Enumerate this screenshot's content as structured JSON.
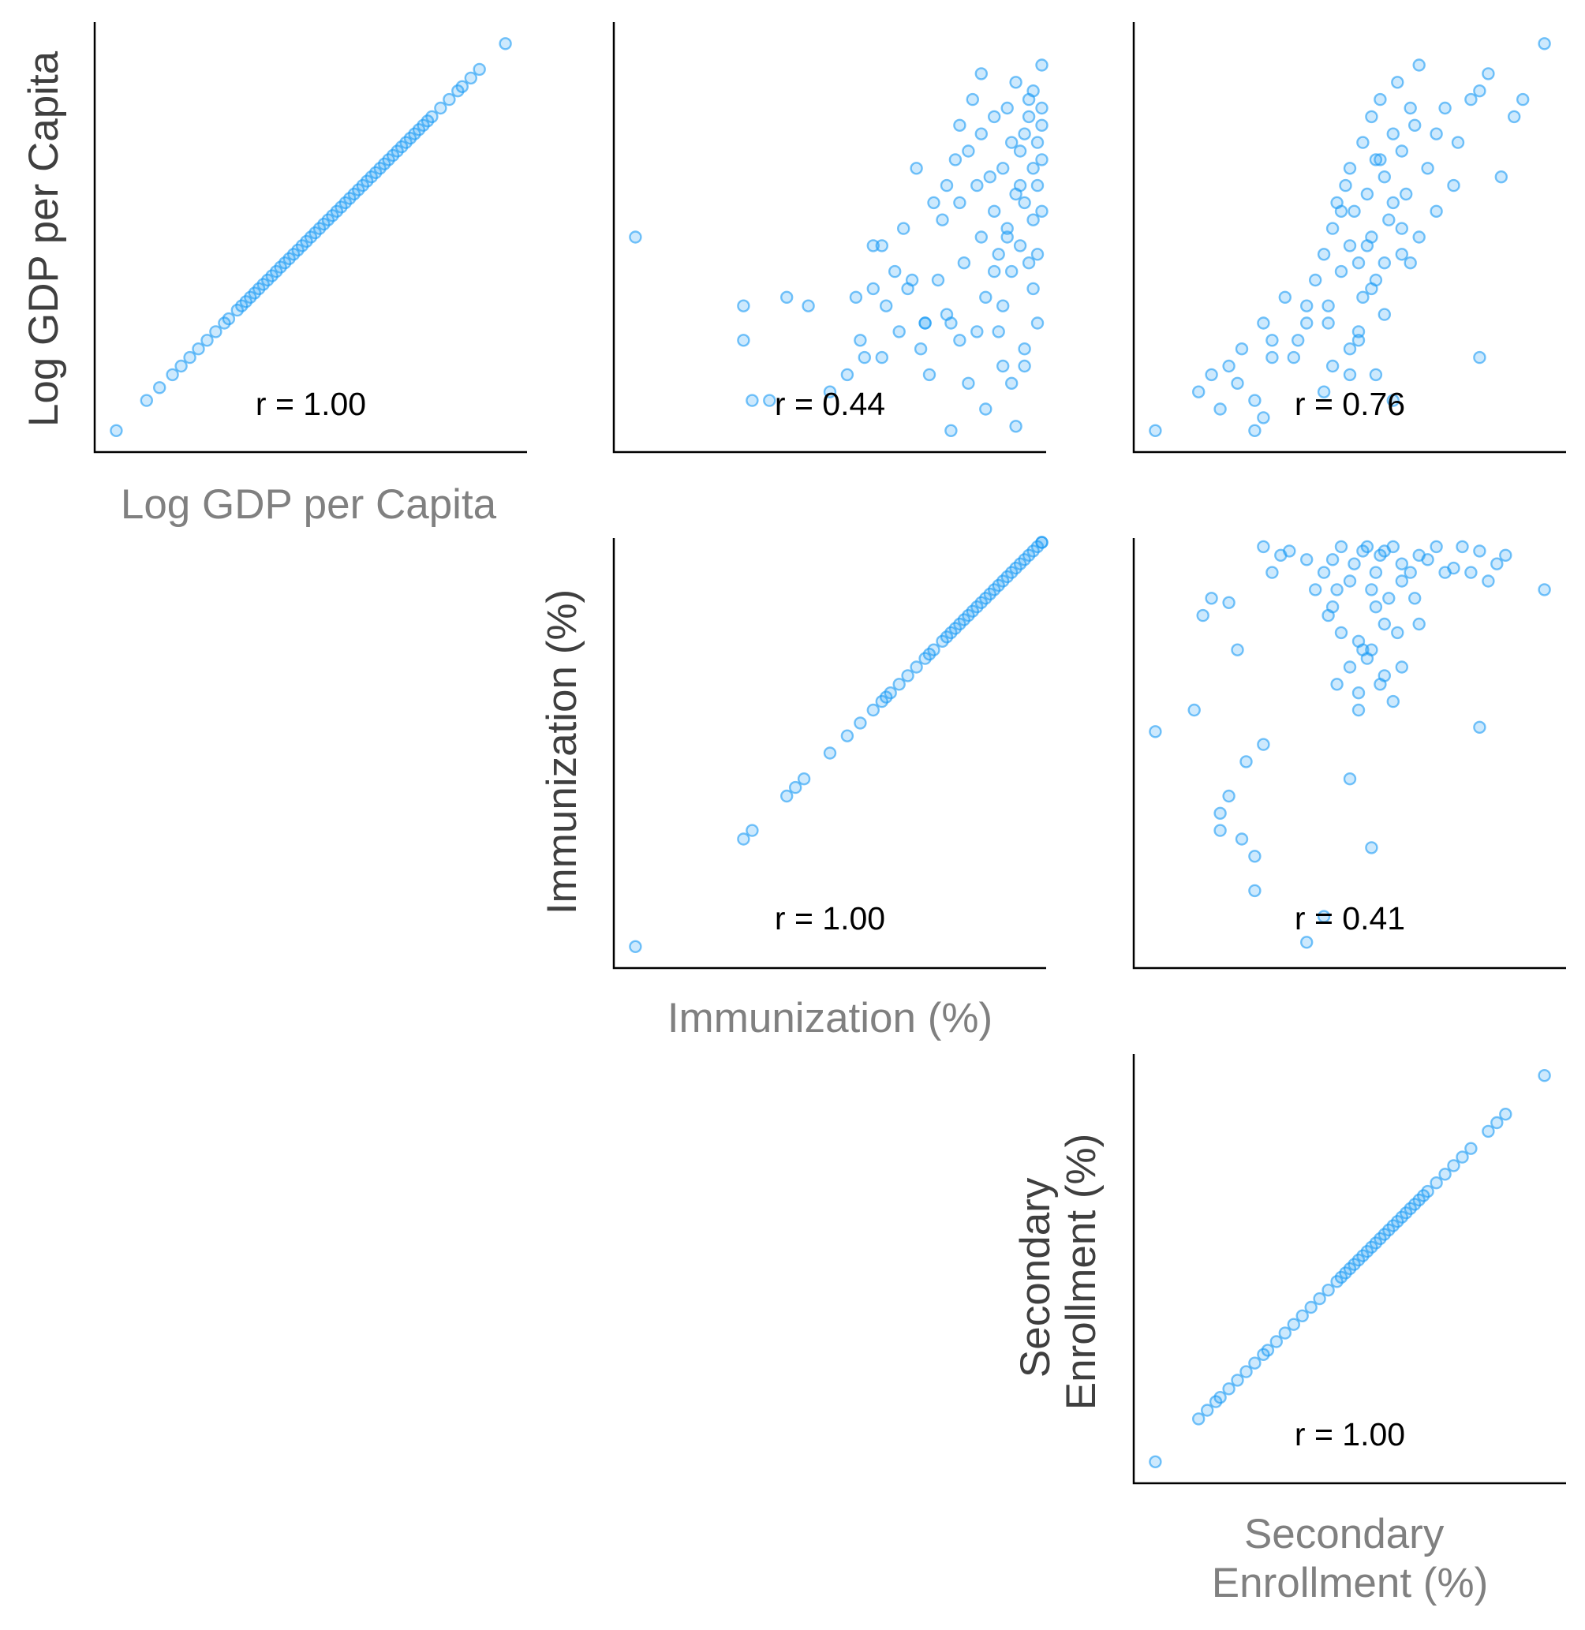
{
  "variables": [
    "Log GDP per Capita",
    "Immunization (%)",
    "Secondary Enrollment (%)"
  ],
  "colors": {
    "point": "#1a9bf5",
    "axis": "#000000",
    "ylabel": "#3f3f3f",
    "xlabel": "#808080"
  },
  "chart_data": [
    {
      "type": "scatter",
      "x_label": "Log GDP per Capita",
      "y_label": "Log GDP per Capita",
      "annotation": "r = 1.00",
      "corr": 1.0,
      "x": [
        0.05,
        0.12,
        0.15,
        0.18,
        0.2,
        0.22,
        0.24,
        0.26,
        0.28,
        0.3,
        0.31,
        0.33,
        0.34,
        0.35,
        0.36,
        0.37,
        0.38,
        0.39,
        0.4,
        0.41,
        0.42,
        0.43,
        0.44,
        0.45,
        0.46,
        0.47,
        0.48,
        0.49,
        0.5,
        0.51,
        0.52,
        0.53,
        0.54,
        0.55,
        0.56,
        0.57,
        0.58,
        0.59,
        0.6,
        0.61,
        0.62,
        0.63,
        0.64,
        0.65,
        0.66,
        0.67,
        0.68,
        0.69,
        0.7,
        0.71,
        0.72,
        0.73,
        0.74,
        0.75,
        0.76,
        0.77,
        0.78,
        0.8,
        0.82,
        0.84,
        0.85,
        0.87,
        0.89,
        0.95
      ],
      "y": [
        0.05,
        0.12,
        0.15,
        0.18,
        0.2,
        0.22,
        0.24,
        0.26,
        0.28,
        0.3,
        0.31,
        0.33,
        0.34,
        0.35,
        0.36,
        0.37,
        0.38,
        0.39,
        0.4,
        0.41,
        0.42,
        0.43,
        0.44,
        0.45,
        0.46,
        0.47,
        0.48,
        0.49,
        0.5,
        0.51,
        0.52,
        0.53,
        0.54,
        0.55,
        0.56,
        0.57,
        0.58,
        0.59,
        0.6,
        0.61,
        0.62,
        0.63,
        0.64,
        0.65,
        0.66,
        0.67,
        0.68,
        0.69,
        0.7,
        0.71,
        0.72,
        0.73,
        0.74,
        0.75,
        0.76,
        0.77,
        0.78,
        0.8,
        0.82,
        0.84,
        0.85,
        0.87,
        0.89,
        0.95
      ]
    },
    {
      "type": "scatter",
      "x_label": "Immunization (%)",
      "y_label": "Log GDP per Capita",
      "annotation": "r = 0.44",
      "corr": 0.44,
      "x": [
        0.05,
        0.3,
        0.3,
        0.32,
        0.36,
        0.4,
        0.45,
        0.5,
        0.54,
        0.56,
        0.57,
        0.58,
        0.6,
        0.62,
        0.63,
        0.65,
        0.66,
        0.67,
        0.68,
        0.7,
        0.71,
        0.72,
        0.73,
        0.74,
        0.75,
        0.76,
        0.77,
        0.78,
        0.78,
        0.79,
        0.8,
        0.8,
        0.81,
        0.82,
        0.83,
        0.84,
        0.85,
        0.85,
        0.86,
        0.87,
        0.88,
        0.88,
        0.89,
        0.9,
        0.9,
        0.91,
        0.91,
        0.92,
        0.92,
        0.93,
        0.93,
        0.94,
        0.94,
        0.95,
        0.95,
        0.96,
        0.96,
        0.97,
        0.97,
        0.97,
        0.98,
        0.98,
        0.98,
        0.99,
        0.99,
        0.99,
        0.99,
        0.8,
        0.84,
        0.9,
        0.95,
        0.82,
        0.77,
        0.6,
        0.62,
        0.69,
        0.72,
        0.89,
        0.92,
        0.95,
        0.98,
        0.97,
        0.86,
        0.93,
        0.88,
        0.91,
        0.94,
        0.96,
        0.99,
        0.85
      ],
      "y": [
        0.5,
        0.34,
        0.26,
        0.12,
        0.12,
        0.36,
        0.34,
        0.14,
        0.18,
        0.36,
        0.26,
        0.22,
        0.48,
        0.48,
        0.34,
        0.42,
        0.28,
        0.52,
        0.38,
        0.66,
        0.24,
        0.3,
        0.18,
        0.58,
        0.4,
        0.54,
        0.62,
        0.3,
        0.05,
        0.68,
        0.76,
        0.58,
        0.44,
        0.7,
        0.82,
        0.62,
        0.74,
        0.5,
        0.36,
        0.64,
        0.78,
        0.56,
        0.46,
        0.66,
        0.34,
        0.8,
        0.52,
        0.72,
        0.42,
        0.6,
        0.86,
        0.7,
        0.48,
        0.74,
        0.58,
        0.78,
        0.44,
        0.66,
        0.54,
        0.84,
        0.72,
        0.62,
        0.46,
        0.68,
        0.76,
        0.56,
        0.9,
        0.26,
        0.28,
        0.2,
        0.24,
        0.16,
        0.32,
        0.38,
        0.22,
        0.4,
        0.3,
        0.28,
        0.16,
        0.2,
        0.3,
        0.38,
        0.1,
        0.06,
        0.42,
        0.5,
        0.62,
        0.82,
        0.8,
        0.88
      ]
    },
    {
      "type": "scatter",
      "x_label": "Secondary Enrollment (%)",
      "y_label": "Log GDP per Capita",
      "annotation": "r = 0.76",
      "corr": 0.76,
      "x": [
        0.05,
        0.15,
        0.18,
        0.2,
        0.22,
        0.25,
        0.28,
        0.3,
        0.32,
        0.35,
        0.37,
        0.4,
        0.42,
        0.44,
        0.45,
        0.46,
        0.47,
        0.48,
        0.49,
        0.5,
        0.5,
        0.51,
        0.52,
        0.53,
        0.54,
        0.55,
        0.55,
        0.56,
        0.57,
        0.58,
        0.59,
        0.6,
        0.61,
        0.62,
        0.63,
        0.64,
        0.65,
        0.66,
        0.68,
        0.7,
        0.72,
        0.75,
        0.78,
        0.8,
        0.82,
        0.85,
        0.88,
        0.9,
        0.95,
        0.5,
        0.52,
        0.56,
        0.58,
        0.6,
        0.45,
        0.48,
        0.55,
        0.62,
        0.66,
        0.7,
        0.74,
        0.58,
        0.52,
        0.5,
        0.46,
        0.3,
        0.32,
        0.4,
        0.44,
        0.64,
        0.56,
        0.53,
        0.6,
        0.57,
        0.62,
        0.54,
        0.8,
        0.28,
        0.24,
        0.38
      ],
      "y": [
        0.05,
        0.14,
        0.18,
        0.1,
        0.2,
        0.24,
        0.05,
        0.3,
        0.26,
        0.36,
        0.22,
        0.34,
        0.4,
        0.46,
        0.34,
        0.52,
        0.58,
        0.42,
        0.62,
        0.48,
        0.66,
        0.56,
        0.44,
        0.72,
        0.6,
        0.78,
        0.5,
        0.68,
        0.82,
        0.64,
        0.54,
        0.74,
        0.86,
        0.7,
        0.6,
        0.8,
        0.76,
        0.9,
        0.66,
        0.74,
        0.8,
        0.72,
        0.82,
        0.84,
        0.88,
        0.64,
        0.78,
        0.82,
        0.95,
        0.24,
        0.28,
        0.18,
        0.32,
        0.12,
        0.3,
        0.56,
        0.38,
        0.46,
        0.5,
        0.56,
        0.62,
        0.44,
        0.26,
        0.18,
        0.2,
        0.08,
        0.22,
        0.3,
        0.14,
        0.44,
        0.4,
        0.36,
        0.58,
        0.68,
        0.52,
        0.48,
        0.22,
        0.12,
        0.16,
        0.26
      ]
    },
    {
      "type": "scatter",
      "x_label": "Immunization (%)",
      "y_label": "Immunization (%)",
      "annotation": "r = 1.00",
      "corr": 1.0,
      "x": [
        0.05,
        0.3,
        0.32,
        0.4,
        0.42,
        0.44,
        0.5,
        0.54,
        0.57,
        0.6,
        0.62,
        0.63,
        0.64,
        0.66,
        0.68,
        0.7,
        0.72,
        0.73,
        0.74,
        0.76,
        0.77,
        0.78,
        0.79,
        0.8,
        0.81,
        0.82,
        0.83,
        0.84,
        0.85,
        0.86,
        0.87,
        0.88,
        0.89,
        0.9,
        0.91,
        0.92,
        0.93,
        0.94,
        0.95,
        0.96,
        0.97,
        0.98,
        0.99,
        0.99
      ],
      "y": [
        0.05,
        0.3,
        0.32,
        0.4,
        0.42,
        0.44,
        0.5,
        0.54,
        0.57,
        0.6,
        0.62,
        0.63,
        0.64,
        0.66,
        0.68,
        0.7,
        0.72,
        0.73,
        0.74,
        0.76,
        0.77,
        0.78,
        0.79,
        0.8,
        0.81,
        0.82,
        0.83,
        0.84,
        0.85,
        0.86,
        0.87,
        0.88,
        0.89,
        0.9,
        0.91,
        0.92,
        0.93,
        0.94,
        0.95,
        0.96,
        0.97,
        0.98,
        0.99,
        0.99
      ]
    },
    {
      "type": "scatter",
      "x_label": "Secondary Enrollment (%)",
      "y_label": "Immunization (%)",
      "annotation": "r = 0.41",
      "corr": 0.41,
      "x": [
        0.05,
        0.14,
        0.16,
        0.18,
        0.2,
        0.22,
        0.24,
        0.25,
        0.28,
        0.3,
        0.32,
        0.34,
        0.36,
        0.4,
        0.42,
        0.44,
        0.45,
        0.46,
        0.47,
        0.48,
        0.5,
        0.51,
        0.52,
        0.53,
        0.54,
        0.55,
        0.56,
        0.57,
        0.58,
        0.59,
        0.6,
        0.62,
        0.64,
        0.66,
        0.7,
        0.72,
        0.76,
        0.8,
        0.84,
        0.86,
        0.95,
        0.5,
        0.52,
        0.55,
        0.58,
        0.6,
        0.48,
        0.46,
        0.56,
        0.54,
        0.62,
        0.65,
        0.68,
        0.74,
        0.78,
        0.82,
        0.3,
        0.26,
        0.22,
        0.2,
        0.28,
        0.4,
        0.44,
        0.52,
        0.58,
        0.61,
        0.55,
        0.5,
        0.8,
        0.57,
        0.53,
        0.47,
        0.62,
        0.66
      ],
      "y": [
        0.55,
        0.6,
        0.82,
        0.86,
        0.32,
        0.85,
        0.74,
        0.3,
        0.26,
        0.98,
        0.92,
        0.96,
        0.97,
        0.95,
        0.88,
        0.92,
        0.82,
        0.95,
        0.66,
        0.98,
        0.9,
        0.94,
        0.76,
        0.97,
        0.98,
        0.88,
        0.92,
        0.96,
        0.97,
        0.86,
        0.98,
        0.94,
        0.92,
        0.96,
        0.98,
        0.92,
        0.98,
        0.97,
        0.94,
        0.96,
        0.88,
        0.7,
        0.64,
        0.74,
        0.8,
        0.62,
        0.78,
        0.84,
        0.84,
        0.72,
        0.9,
        0.86,
        0.95,
        0.93,
        0.92,
        0.9,
        0.52,
        0.48,
        0.4,
        0.36,
        0.18,
        0.06,
        0.12,
        0.6,
        0.68,
        0.78,
        0.28,
        0.44,
        0.56,
        0.66,
        0.74,
        0.88,
        0.7,
        0.8
      ]
    },
    {
      "type": "scatter",
      "x_label": "Secondary Enrollment (%)",
      "y_label": "Secondary Enrollment (%)",
      "annotation": "r = 1.00",
      "corr": 1.0,
      "x": [
        0.05,
        0.15,
        0.17,
        0.19,
        0.2,
        0.22,
        0.24,
        0.26,
        0.28,
        0.3,
        0.31,
        0.33,
        0.35,
        0.37,
        0.39,
        0.41,
        0.43,
        0.45,
        0.47,
        0.48,
        0.49,
        0.5,
        0.51,
        0.52,
        0.53,
        0.54,
        0.55,
        0.56,
        0.57,
        0.58,
        0.59,
        0.6,
        0.61,
        0.62,
        0.63,
        0.64,
        0.65,
        0.66,
        0.67,
        0.68,
        0.7,
        0.72,
        0.74,
        0.76,
        0.78,
        0.82,
        0.84,
        0.86,
        0.95
      ],
      "y": [
        0.05,
        0.15,
        0.17,
        0.19,
        0.2,
        0.22,
        0.24,
        0.26,
        0.28,
        0.3,
        0.31,
        0.33,
        0.35,
        0.37,
        0.39,
        0.41,
        0.43,
        0.45,
        0.47,
        0.48,
        0.49,
        0.5,
        0.51,
        0.52,
        0.53,
        0.54,
        0.55,
        0.56,
        0.57,
        0.58,
        0.59,
        0.6,
        0.61,
        0.62,
        0.63,
        0.64,
        0.65,
        0.66,
        0.67,
        0.68,
        0.7,
        0.72,
        0.74,
        0.76,
        0.78,
        0.82,
        0.84,
        0.86,
        0.95
      ]
    }
  ]
}
